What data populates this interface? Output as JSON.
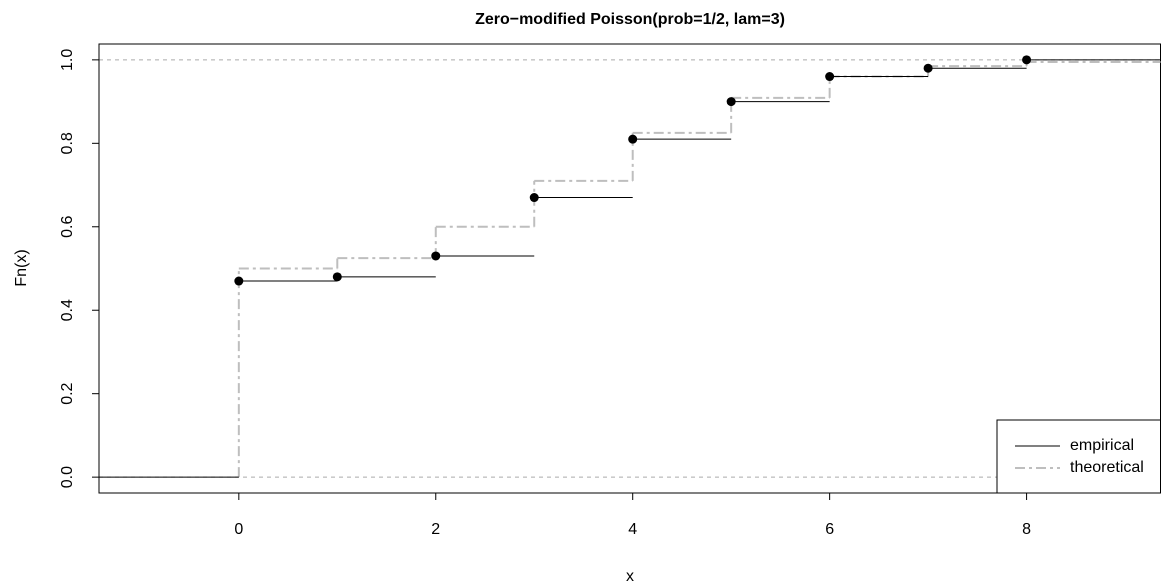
{
  "chart_data": {
    "type": "step",
    "title": "Zero−modified Poisson(prob=1/2, lam=3)",
    "x_label": "x",
    "y_label": "Fn(x)",
    "x": [
      0,
      1,
      2,
      3,
      4,
      5,
      6,
      7,
      8
    ],
    "series": [
      {
        "name": "empirical",
        "color": "#000000",
        "values": [
          0.47,
          0.48,
          0.53,
          0.67,
          0.81,
          0.9,
          0.96,
          0.98,
          1.0
        ]
      },
      {
        "name": "theoretical",
        "color": "#bebebe",
        "values": [
          0.5,
          0.525,
          0.6,
          0.71,
          0.825,
          0.909,
          0.96,
          0.985,
          0.995
        ]
      }
    ],
    "xlim": [
      -1.42,
      9.36
    ],
    "ylim": [
      -0.038,
      1.038
    ],
    "xticks": [
      0,
      2,
      4,
      6,
      8
    ],
    "yticks": [
      {
        "value": 0,
        "label": "0.0"
      },
      {
        "value": 0.2,
        "label": "0.2"
      },
      {
        "value": 0.4,
        "label": "0.4"
      },
      {
        "value": 0.6,
        "label": "0.6"
      },
      {
        "value": 0.8,
        "label": "0.8"
      },
      {
        "value": 1,
        "label": "1.0"
      }
    ],
    "reference_lines": [
      0,
      1
    ],
    "legend": "bottomright"
  }
}
